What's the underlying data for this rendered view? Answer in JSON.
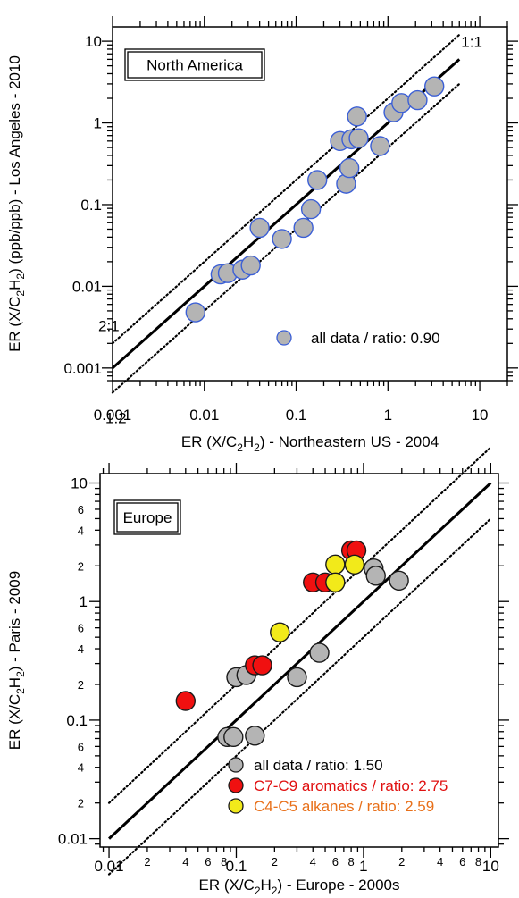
{
  "chart_data": [
    {
      "type": "scatter",
      "log_x": true,
      "log_y": true,
      "xlim": [
        0.001,
        20
      ],
      "ylim": [
        0.0007,
        15
      ],
      "x_ticks": [
        0.001,
        0.01,
        0.1,
        1,
        10
      ],
      "x_tick_labels": [
        "0.001",
        "0.01",
        "0.1",
        "1",
        "10"
      ],
      "y_ticks": [
        0.001,
        0.01,
        0.1,
        1,
        10
      ],
      "y_tick_labels": [
        "0.001",
        "0.01",
        "0.1",
        "1",
        "10"
      ],
      "xlabel_parts": [
        "ER (X/C",
        "2",
        "H",
        "2",
        ")  - Northeastern US - 2004"
      ],
      "ylabel_parts": [
        "ER (X/C",
        "2",
        "H",
        "2",
        ") (ppb/ppb) - Los Angeles - 2010"
      ],
      "panel_label": "North America",
      "reference_lines": [
        {
          "label": "1:1",
          "factor": 1,
          "style": "solid"
        },
        {
          "label": "2:1",
          "factor": 2,
          "style": "dotted"
        },
        {
          "label": "1:2",
          "factor": 0.5,
          "style": "dotted"
        }
      ],
      "line_domain": [
        0.001,
        6
      ],
      "series": [
        {
          "name": "all data / ratio: 0.90",
          "color": "#b4b4b4",
          "edge_color": "#3b5fd6",
          "legend_text_color": "#000000",
          "points": [
            [
              0.008,
              0.0048
            ],
            [
              0.015,
              0.014
            ],
            [
              0.018,
              0.0145
            ],
            [
              0.026,
              0.016
            ],
            [
              0.032,
              0.018
            ],
            [
              0.04,
              0.052
            ],
            [
              0.07,
              0.038
            ],
            [
              0.12,
              0.052
            ],
            [
              0.145,
              0.088
            ],
            [
              0.17,
              0.2
            ],
            [
              0.3,
              0.6
            ],
            [
              0.35,
              0.18
            ],
            [
              0.38,
              0.28
            ],
            [
              0.4,
              0.63
            ],
            [
              0.48,
              0.65
            ],
            [
              0.46,
              1.2
            ],
            [
              0.82,
              0.52
            ],
            [
              1.15,
              1.35
            ],
            [
              1.4,
              1.75
            ],
            [
              2.1,
              1.9
            ],
            [
              3.2,
              2.8
            ]
          ]
        }
      ]
    },
    {
      "type": "scatter",
      "log_x": true,
      "log_y": true,
      "xlim": [
        0.0085,
        11.5
      ],
      "ylim": [
        0.0085,
        12
      ],
      "x_ticks": [
        0.01,
        0.1,
        1,
        10
      ],
      "x_tick_labels": [
        "0.01",
        "0.1",
        "1",
        "10"
      ],
      "x_minor_labels": [
        {
          "value": 0.02,
          "label": "2"
        },
        {
          "value": 0.04,
          "label": "4"
        },
        {
          "value": 0.06,
          "label": "6"
        },
        {
          "value": 0.08,
          "label": "8"
        },
        {
          "value": 0.2,
          "label": "2"
        },
        {
          "value": 0.4,
          "label": "4"
        },
        {
          "value": 0.6,
          "label": "6"
        },
        {
          "value": 0.8,
          "label": "8"
        },
        {
          "value": 2,
          "label": "2"
        },
        {
          "value": 4,
          "label": "4"
        },
        {
          "value": 6,
          "label": "6"
        },
        {
          "value": 8,
          "label": "8"
        }
      ],
      "y_ticks": [
        0.01,
        0.1,
        1,
        10
      ],
      "y_tick_labels": [
        "0.01",
        "0.1",
        "1",
        "10"
      ],
      "y_minor_labels": [
        {
          "value": 0.02,
          "label": "2"
        },
        {
          "value": 0.04,
          "label": "4"
        },
        {
          "value": 0.06,
          "label": "6"
        },
        {
          "value": 0.2,
          "label": "2"
        },
        {
          "value": 0.4,
          "label": "4"
        },
        {
          "value": 0.6,
          "label": "6"
        },
        {
          "value": 2,
          "label": "2"
        },
        {
          "value": 4,
          "label": "4"
        },
        {
          "value": 6,
          "label": "6"
        }
      ],
      "xlabel_parts": [
        "ER (X/C",
        "2",
        "H",
        "2",
        ") - Europe - 2000s"
      ],
      "ylabel_parts": [
        "ER (X/C",
        "2",
        "H",
        "2",
        ") - Paris - 2009"
      ],
      "panel_label": "Europe",
      "reference_lines": [
        {
          "factor": 1,
          "style": "solid"
        },
        {
          "factor": 2,
          "style": "dotted"
        },
        {
          "factor": 0.5,
          "style": "dotted"
        }
      ],
      "line_domain": [
        0.01,
        10
      ],
      "series": [
        {
          "name": "all data / ratio: 1.50",
          "color": "#b4b4b4",
          "edge_color": "#1a1a1a",
          "legend_text_color": "#000000",
          "points": [
            [
              0.085,
              0.072
            ],
            [
              0.095,
              0.072
            ],
            [
              0.1,
              0.23
            ],
            [
              0.12,
              0.24
            ],
            [
              0.14,
              0.074
            ],
            [
              0.3,
              0.23
            ],
            [
              0.45,
              0.37
            ],
            [
              1.2,
              1.9
            ],
            [
              1.25,
              1.65
            ],
            [
              1.9,
              1.5
            ]
          ]
        },
        {
          "name": "C7-C9 aromatics / ratio: 2.75",
          "color": "#f01010",
          "edge_color": "#1a1a1a",
          "legend_text_color": "#e01010",
          "points": [
            [
              0.04,
              0.145
            ],
            [
              0.14,
              0.29
            ],
            [
              0.16,
              0.29
            ],
            [
              0.4,
              1.45
            ],
            [
              0.5,
              1.45
            ],
            [
              0.8,
              2.7
            ],
            [
              0.88,
              2.7
            ]
          ]
        },
        {
          "name": "C4-C5 alkanes / ratio: 2.59",
          "color": "#f2ea1a",
          "edge_color": "#1a1a1a",
          "legend_text_color": "#e8701a",
          "points": [
            [
              0.22,
              0.55
            ],
            [
              0.6,
              2.05
            ],
            [
              0.6,
              1.45
            ],
            [
              0.85,
              2.05
            ]
          ]
        }
      ]
    }
  ]
}
